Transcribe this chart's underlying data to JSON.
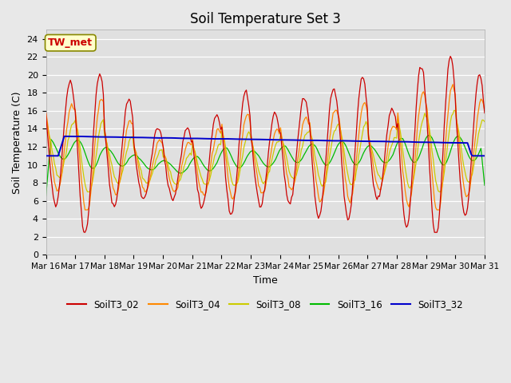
{
  "title": "Soil Temperature Set 3",
  "xlabel": "Time",
  "ylabel": "Soil Temperature (C)",
  "ylim": [
    0,
    25
  ],
  "yticks": [
    0,
    2,
    4,
    6,
    8,
    10,
    12,
    14,
    16,
    18,
    20,
    22,
    24
  ],
  "colors": {
    "SoilT3_02": "#cc0000",
    "SoilT3_04": "#ff8800",
    "SoilT3_08": "#cccc00",
    "SoilT3_16": "#00bb00",
    "SoilT3_32": "#0000cc"
  },
  "annotation_text": "TW_met",
  "bg_color": "#e0e0e0",
  "fig_facecolor": "#e8e8e8",
  "title_fontsize": 12,
  "axis_fontsize": 9,
  "tick_fontsize": 7.5
}
